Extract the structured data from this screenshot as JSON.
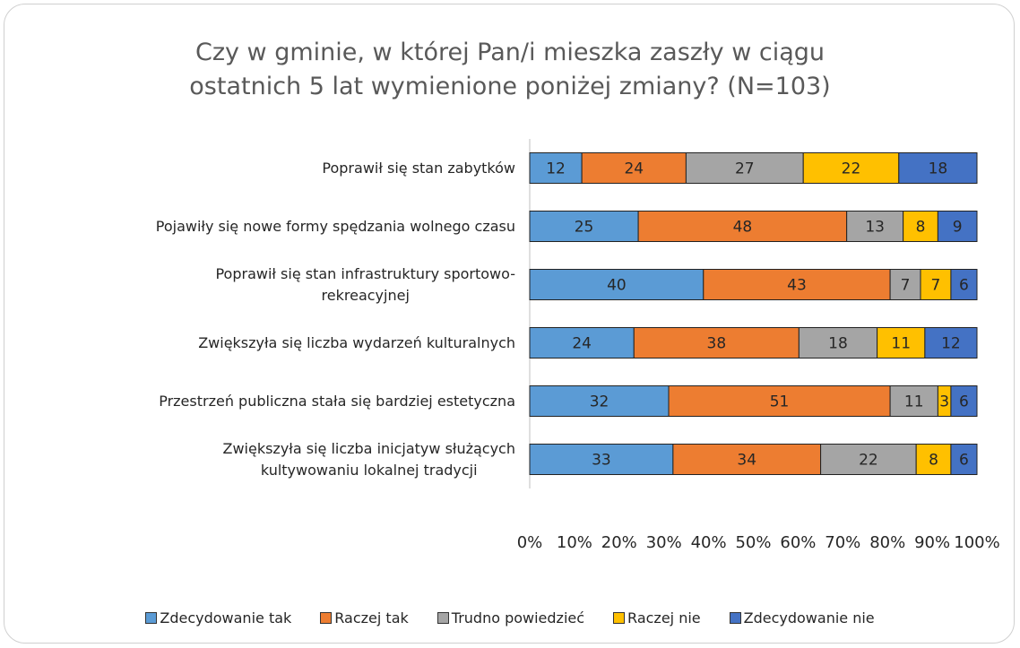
{
  "chart_data": {
    "type": "bar",
    "orientation": "horizontal",
    "stacking": "percent",
    "title": "Czy w gminie, w której Pan/i mieszka zaszły w ciągu\nostatnich 5 lat wymienione poniżej zmiany? (N=103)",
    "categories": [
      "Poprawił się stan zabytków",
      "Pojawiły się nowe formy spędzania wolnego czasu",
      "Poprawił się stan infrastruktury sportowo-\nrekreacyjnej",
      "Zwiększyła się liczba wydarzeń kulturalnych",
      "Przestrzeń publiczna stała się bardziej estetyczna",
      "Zwiększyła się liczba inicjatyw służących\nkultywowaniu lokalnej tradycji"
    ],
    "series": [
      {
        "name": "Zdecydowanie tak",
        "color": "#5b9bd5",
        "values": [
          12,
          25,
          40,
          24,
          32,
          33
        ]
      },
      {
        "name": "Raczej tak",
        "color": "#ed7d31",
        "values": [
          24,
          48,
          43,
          38,
          51,
          34
        ]
      },
      {
        "name": "Trudno powiedzieć",
        "color": "#a5a5a5",
        "values": [
          27,
          13,
          7,
          18,
          11,
          22
        ]
      },
      {
        "name": "Raczej nie",
        "color": "#ffc000",
        "values": [
          22,
          8,
          7,
          11,
          3,
          8
        ]
      },
      {
        "name": "Zdecydowanie nie",
        "color": "#4472c4",
        "values": [
          18,
          9,
          6,
          12,
          6,
          6
        ]
      }
    ],
    "xlim": [
      0,
      100
    ],
    "xticks": [
      {
        "value": 0,
        "label": "0%"
      },
      {
        "value": 10,
        "label": "10%"
      },
      {
        "value": 20,
        "label": "20%"
      },
      {
        "value": 30,
        "label": "30%"
      },
      {
        "value": 40,
        "label": "40%"
      },
      {
        "value": 50,
        "label": "50%"
      },
      {
        "value": 60,
        "label": "60%"
      },
      {
        "value": 70,
        "label": "70%"
      },
      {
        "value": 80,
        "label": "80%"
      },
      {
        "value": 90,
        "label": "90%"
      },
      {
        "value": 100,
        "label": "100%"
      }
    ],
    "legend": "bottom"
  }
}
